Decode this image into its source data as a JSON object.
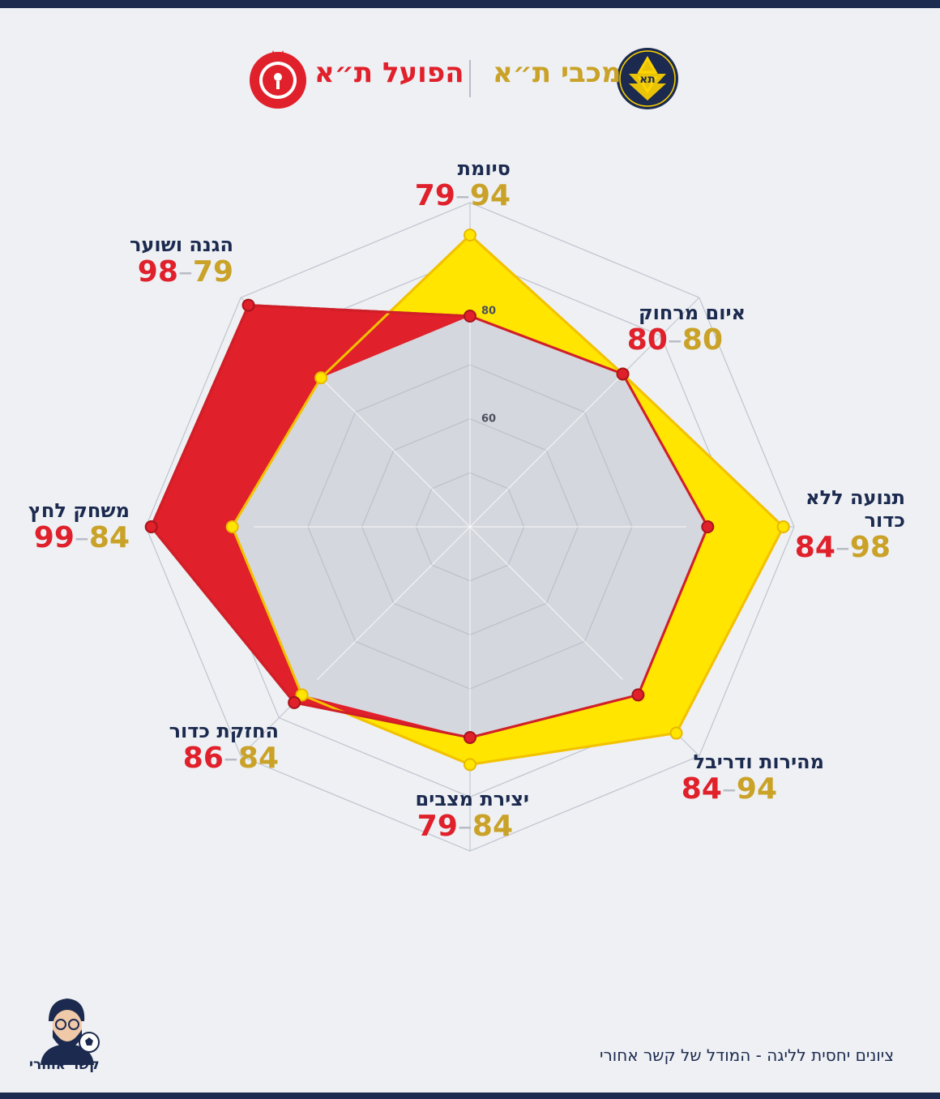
{
  "header": {
    "maccabi_name": "מכבי ת״א",
    "hapoel_name": "הפועל ת״א",
    "maccabi_logo_text": "MACCABI TEL AVIV FC",
    "maccabi_logo_since": "SINCE 1906",
    "hapoel_logo_text": "HAPOEL TEL-AVIV F.C.",
    "hapoel_logo_year": "1923"
  },
  "colors": {
    "maccabi": "#ffe500",
    "maccabi_text": "#c9a227",
    "hapoel": "#e0202a",
    "navy": "#1b2a4e"
  },
  "chart_data": {
    "type": "radar",
    "categories": [
      "סיומת",
      "איום מרחוק",
      "תנועה ללא כדור",
      "מהירות ודריבל",
      "יצירת מצבים",
      "החזקת כדור",
      "משחק לחץ",
      "הגנה ושוער"
    ],
    "series": [
      {
        "name": "מכבי ת״א",
        "values": [
          94,
          80,
          98,
          94,
          84,
          84,
          84,
          79
        ]
      },
      {
        "name": "הפועל ת״א",
        "values": [
          79,
          80,
          84,
          84,
          79,
          86,
          99,
          98
        ]
      }
    ],
    "rlim": [
      40,
      100
    ],
    "ring_ticks": [
      60,
      80
    ]
  },
  "footer": {
    "note": "ציונים יחסית לליגה - המודל של קשר אחורי",
    "brand": "קשר אחורי"
  }
}
